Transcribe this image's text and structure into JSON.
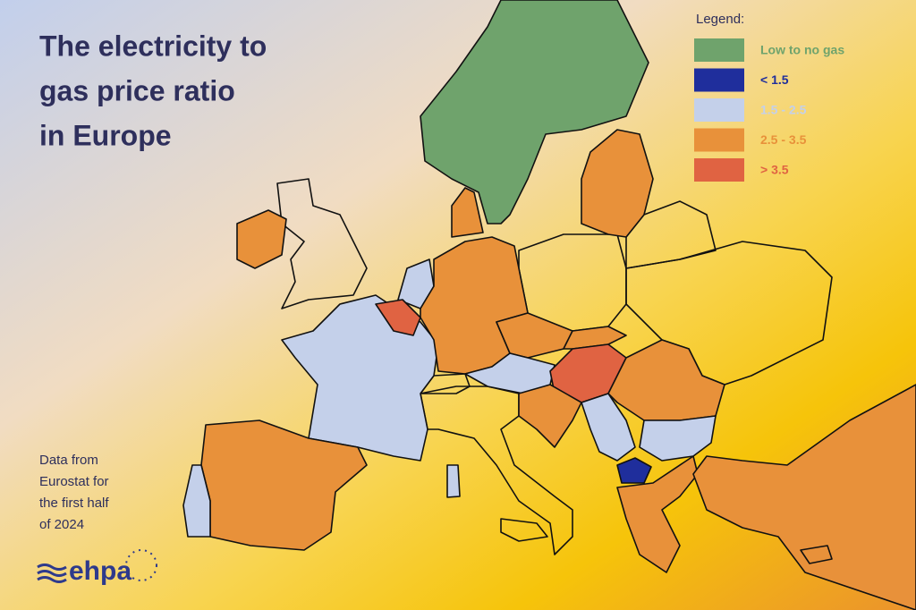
{
  "title": {
    "lines": [
      "The electricity to",
      "gas price ratio",
      "in Europe"
    ]
  },
  "legend": {
    "title": "Legend:",
    "items": [
      {
        "label": "Low to no gas",
        "color": "#6fa36c"
      },
      {
        "label": "< 1.5",
        "color": "#1f2e9c"
      },
      {
        "label": "1.5 - 2.5",
        "color": "#c4d0ea"
      },
      {
        "label": "2.5 - 3.5",
        "color": "#e8913a"
      },
      {
        "label": "> 3.5",
        "color": "#e06342"
      }
    ]
  },
  "note": {
    "lines": [
      "Data from",
      "Eurostat for",
      "the first half",
      "of 2024"
    ]
  },
  "logo": {
    "text": "ehpa"
  }
}
